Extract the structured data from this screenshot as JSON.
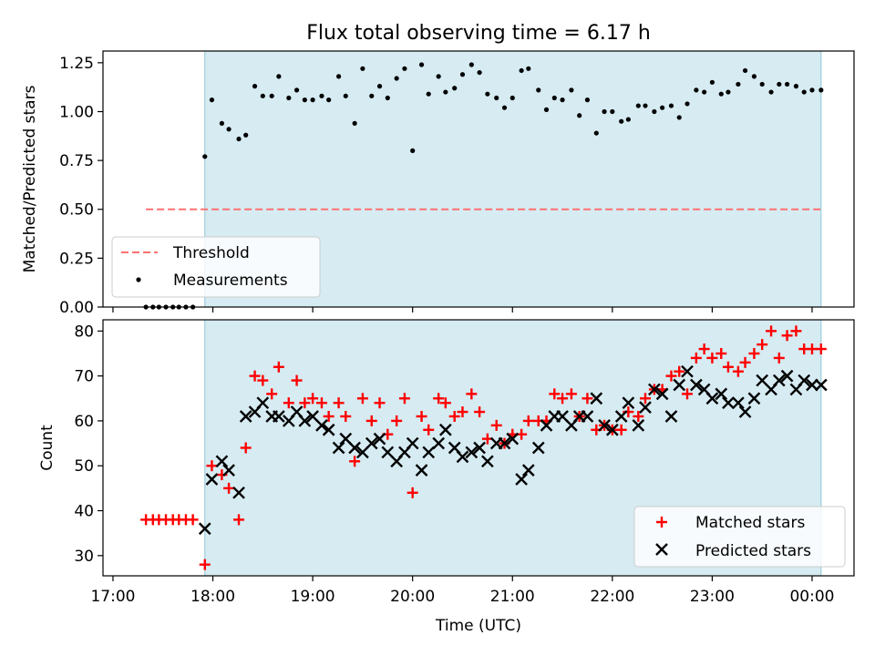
{
  "chart_data": [
    {
      "type": "scatter",
      "title": "Flux total observing time = 6.17 h",
      "ylabel": "Matched/Predicted stars",
      "xlabel": "",
      "xlim": [
        16.9,
        24.42
      ],
      "ylim": [
        0.0,
        1.31
      ],
      "yticks": [
        0.0,
        0.25,
        0.5,
        0.75,
        1.0,
        1.25
      ],
      "ytick_labels": [
        "0.00",
        "0.25",
        "0.50",
        "0.75",
        "1.00",
        "1.25"
      ],
      "observing_window": [
        17.92,
        24.09
      ],
      "threshold": {
        "name": "Threshold",
        "value": 0.5,
        "x_start": 17.33,
        "x_end": 24.09,
        "color": "#ff7070",
        "style": "dashed"
      },
      "legend": [
        {
          "label": "Threshold",
          "marker": "dashed-line",
          "color": "#ff7070"
        },
        {
          "label": "Measurements",
          "marker": "dot",
          "color": "#000000"
        }
      ],
      "legend_position": "lower-left",
      "series": [
        {
          "name": "Measurements",
          "color": "#000000",
          "x": [
            17.33,
            17.4,
            17.46,
            17.53,
            17.6,
            17.66,
            17.73,
            17.8,
            17.92,
            17.99,
            18.09,
            18.16,
            18.26,
            18.33,
            18.42,
            18.5,
            18.59,
            18.66,
            18.76,
            18.84,
            18.92,
            19.0,
            19.09,
            19.16,
            19.26,
            19.33,
            19.42,
            19.5,
            19.59,
            19.67,
            19.75,
            19.84,
            19.92,
            20.0,
            20.09,
            20.16,
            20.26,
            20.33,
            20.42,
            20.5,
            20.59,
            20.67,
            20.75,
            20.84,
            20.92,
            21.0,
            21.09,
            21.16,
            21.26,
            21.34,
            21.42,
            21.5,
            21.59,
            21.67,
            21.75,
            21.84,
            21.92,
            22.0,
            22.09,
            22.16,
            22.26,
            22.33,
            22.42,
            22.5,
            22.59,
            22.67,
            22.75,
            22.84,
            22.92,
            23.0,
            23.09,
            23.16,
            23.26,
            23.33,
            23.42,
            23.5,
            23.59,
            23.67,
            23.75,
            23.84,
            23.92,
            24.0,
            24.09
          ],
          "y": [
            0.0,
            0.0,
            0.0,
            0.0,
            0.0,
            0.0,
            0.0,
            0.0,
            0.77,
            1.06,
            0.94,
            0.91,
            0.86,
            0.88,
            1.13,
            1.08,
            1.08,
            1.18,
            1.07,
            1.11,
            1.06,
            1.06,
            1.08,
            1.06,
            1.18,
            1.08,
            0.94,
            1.22,
            1.08,
            1.13,
            1.07,
            1.17,
            1.22,
            0.8,
            1.24,
            1.09,
            1.18,
            1.1,
            1.12,
            1.19,
            1.24,
            1.2,
            1.09,
            1.07,
            1.02,
            1.07,
            1.21,
            1.22,
            1.11,
            1.01,
            1.07,
            1.06,
            1.11,
            0.98,
            1.06,
            0.89,
            1.0,
            1.0,
            0.95,
            0.96,
            1.03,
            1.03,
            1.0,
            1.02,
            1.03,
            0.97,
            1.04,
            1.11,
            1.1,
            1.15,
            1.09,
            1.1,
            1.14,
            1.21,
            1.18,
            1.14,
            1.1,
            1.14,
            1.14,
            1.13,
            1.1,
            1.11,
            1.11
          ]
        }
      ]
    },
    {
      "type": "scatter",
      "title": "",
      "xlabel": "Time (UTC)",
      "ylabel": "Count",
      "xlim": [
        16.9,
        24.42
      ],
      "ylim": [
        25.5,
        82.5
      ],
      "yticks": [
        30,
        40,
        50,
        60,
        70,
        80
      ],
      "ytick_labels": [
        "30",
        "40",
        "50",
        "60",
        "70",
        "80"
      ],
      "xticks": [
        17,
        18,
        19,
        20,
        21,
        22,
        23,
        24
      ],
      "xtick_labels": [
        "17:00",
        "18:00",
        "19:00",
        "20:00",
        "21:00",
        "22:00",
        "23:00",
        "00:00"
      ],
      "observing_window": [
        17.92,
        24.09
      ],
      "legend": [
        {
          "label": "Matched stars",
          "marker": "plus",
          "color": "#ff0000"
        },
        {
          "label": "Predicted stars",
          "marker": "x",
          "color": "#000000"
        }
      ],
      "legend_position": "lower-right",
      "series": [
        {
          "name": "Matched stars",
          "marker": "plus",
          "color": "#ff0000",
          "x": [
            17.33,
            17.4,
            17.46,
            17.53,
            17.6,
            17.66,
            17.73,
            17.8,
            17.92,
            17.99,
            18.09,
            18.16,
            18.26,
            18.33,
            18.42,
            18.5,
            18.59,
            18.66,
            18.76,
            18.84,
            18.92,
            19.0,
            19.09,
            19.16,
            19.26,
            19.33,
            19.42,
            19.5,
            19.59,
            19.67,
            19.75,
            19.84,
            19.92,
            20.0,
            20.09,
            20.16,
            20.26,
            20.33,
            20.42,
            20.5,
            20.59,
            20.67,
            20.75,
            20.84,
            20.92,
            21.0,
            21.09,
            21.16,
            21.26,
            21.34,
            21.42,
            21.5,
            21.59,
            21.67,
            21.75,
            21.84,
            21.92,
            22.0,
            22.09,
            22.16,
            22.26,
            22.33,
            22.42,
            22.5,
            22.59,
            22.67,
            22.75,
            22.84,
            22.92,
            23.0,
            23.09,
            23.16,
            23.26,
            23.33,
            23.42,
            23.5,
            23.59,
            23.67,
            23.75,
            23.84,
            23.92,
            24.0,
            24.09
          ],
          "y": [
            38,
            38,
            38,
            38,
            38,
            38,
            38,
            38,
            28,
            50,
            48,
            45,
            38,
            54,
            70,
            69,
            66,
            72,
            64,
            69,
            64,
            65,
            64,
            61,
            64,
            61,
            51,
            65,
            60,
            64,
            57,
            60,
            65,
            44,
            61,
            58,
            65,
            64,
            61,
            62,
            66,
            62,
            56,
            59,
            55,
            57,
            57,
            60,
            60,
            60,
            66,
            65,
            66,
            61,
            65,
            58,
            59,
            58,
            58,
            62,
            61,
            65,
            67,
            67,
            70,
            71,
            66,
            74,
            76,
            74,
            75,
            72,
            71,
            73,
            75,
            77,
            80,
            74,
            79,
            80,
            76,
            76,
            76
          ]
        },
        {
          "name": "Predicted stars",
          "marker": "x",
          "color": "#000000",
          "x": [
            17.92,
            17.99,
            18.09,
            18.16,
            18.26,
            18.33,
            18.42,
            18.5,
            18.59,
            18.66,
            18.76,
            18.84,
            18.92,
            19.0,
            19.09,
            19.16,
            19.26,
            19.33,
            19.42,
            19.5,
            19.59,
            19.67,
            19.75,
            19.84,
            19.92,
            20.0,
            20.09,
            20.16,
            20.26,
            20.33,
            20.42,
            20.5,
            20.59,
            20.67,
            20.75,
            20.84,
            20.92,
            21.0,
            21.09,
            21.16,
            21.26,
            21.34,
            21.42,
            21.5,
            21.59,
            21.67,
            21.75,
            21.84,
            21.92,
            22.0,
            22.09,
            22.16,
            22.26,
            22.33,
            22.42,
            22.5,
            22.59,
            22.67,
            22.75,
            22.84,
            22.92,
            23.0,
            23.09,
            23.16,
            23.26,
            23.33,
            23.42,
            23.5,
            23.59,
            23.67,
            23.75,
            23.84,
            23.92,
            24.0,
            24.09
          ],
          "y": [
            36,
            47,
            51,
            49,
            44,
            61,
            62,
            64,
            61,
            61,
            60,
            62,
            60,
            61,
            59,
            58,
            54,
            56,
            54,
            53,
            55,
            56,
            53,
            51,
            53,
            55,
            49,
            53,
            55,
            58,
            54,
            52,
            53,
            54,
            51,
            55,
            55,
            56,
            47,
            49,
            54,
            59,
            61,
            61,
            59,
            61,
            61,
            65,
            59,
            58,
            61,
            64,
            59,
            63,
            67,
            66,
            61,
            68,
            71,
            68,
            67,
            65,
            66,
            64,
            64,
            62,
            65,
            69,
            67,
            69,
            70,
            67,
            69,
            68,
            68
          ]
        }
      ]
    }
  ]
}
